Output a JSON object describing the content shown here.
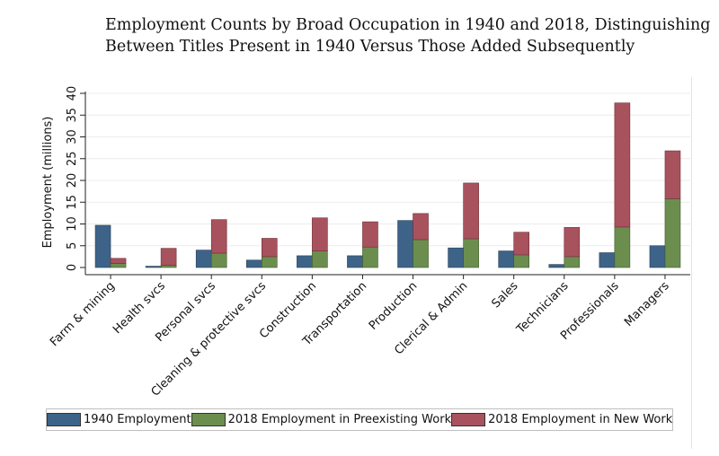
{
  "title_lines": [
    "Employment Counts by Broad Occupation in 1940 and 2018, Distinguishing",
    "Between Titles Present in 1940 Versus Those Added Subsequently"
  ],
  "chart_data": {
    "type": "bar",
    "title": "Employment Counts by Broad Occupation in 1940 and 2018, Distinguishing Between Titles Present in 1940 Versus Those Added Subsequently",
    "ylabel": "Employment (millions)",
    "xlabel": "",
    "ylim": [
      0,
      40
    ],
    "yticks": [
      0,
      5,
      10,
      15,
      20,
      25,
      30,
      35,
      40
    ],
    "grid": true,
    "legend_position": "bottom",
    "categories": [
      "Farm & mining",
      "Health svcs",
      "Personal svcs",
      "Cleaning & protective svcs",
      "Construction",
      "Transportation",
      "Production",
      "Clerical & Admin",
      "Sales",
      "Technicians",
      "Professionals",
      "Managers"
    ],
    "series": [
      {
        "name": "1940 Employment",
        "stack": "1940",
        "color": "#3e6389",
        "values": [
          9.7,
          0.3,
          4.0,
          1.7,
          2.7,
          2.7,
          10.8,
          4.5,
          3.8,
          0.7,
          3.4,
          5.0
        ]
      },
      {
        "name": "2018 Employment in Preexisting Work",
        "stack": "2018",
        "color": "#6b8e4e",
        "values": [
          0.9,
          0.5,
          3.3,
          2.5,
          3.8,
          4.7,
          6.4,
          6.6,
          2.9,
          2.5,
          9.3,
          15.8
        ]
      },
      {
        "name": "2018 Employment in New Work",
        "stack": "2018",
        "color": "#a8525e",
        "values": [
          1.2,
          3.9,
          7.7,
          4.2,
          7.6,
          5.8,
          6.0,
          12.8,
          5.2,
          6.7,
          28.5,
          11.0
        ]
      }
    ]
  }
}
